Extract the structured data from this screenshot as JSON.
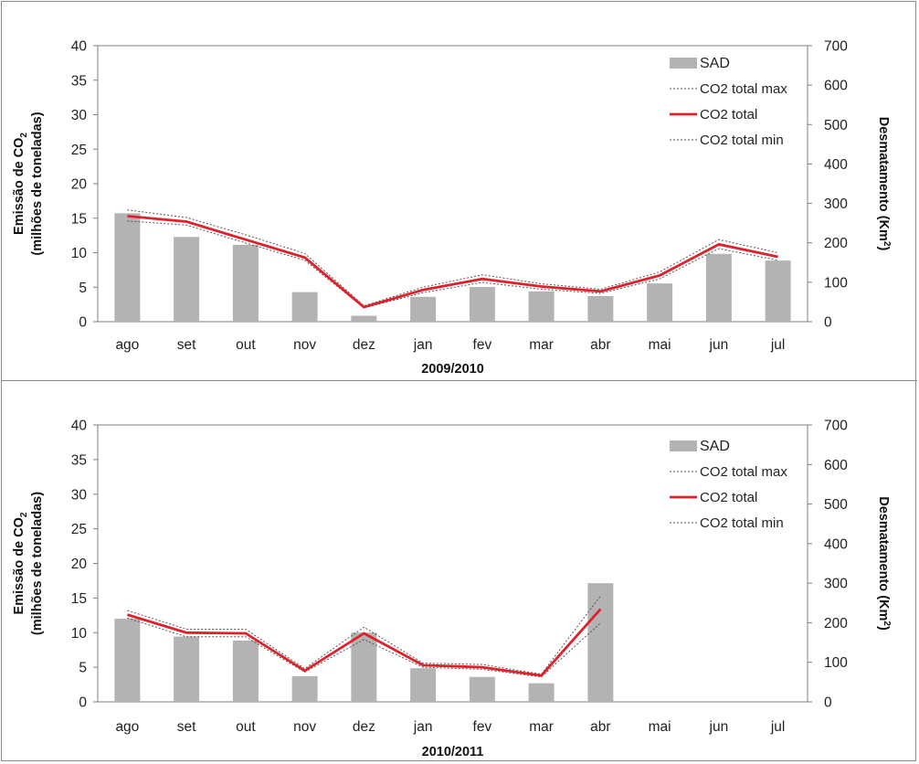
{
  "chart_data": [
    {
      "type": "bar",
      "xlabel": "2009/2010",
      "ylabel_left": [
        "Emissão de CO",
        "2",
        "(milhões de toneladas)"
      ],
      "ylabel_right": [
        "Desmatamento (Km",
        "2",
        ")"
      ],
      "ylim_left": [
        0,
        40
      ],
      "ylim_right": [
        0,
        700
      ],
      "yticks_left": [
        0,
        5,
        10,
        15,
        20,
        25,
        30,
        35,
        40
      ],
      "yticks_right": [
        0,
        100,
        200,
        300,
        400,
        500,
        600,
        700
      ],
      "categories": [
        "ago",
        "set",
        "out",
        "nov",
        "dez",
        "jan",
        "fev",
        "mar",
        "abr",
        "mai",
        "jun",
        "jul"
      ],
      "legend_position": "top-right",
      "series": [
        {
          "name": "SAD",
          "kind": "bar",
          "axis": "right",
          "color": "#b3b3b3",
          "values": [
            275,
            215,
            195,
            75,
            15,
            63,
            88,
            77,
            65,
            97,
            172,
            155
          ]
        },
        {
          "name": "CO2 total max",
          "kind": "line-dotted",
          "axis": "left",
          "color": "#555555",
          "values": [
            16.2,
            15.1,
            12.6,
            9.9,
            2.3,
            5.0,
            6.8,
            5.5,
            4.7,
            7.2,
            11.9,
            10.0
          ]
        },
        {
          "name": "CO2 total",
          "kind": "line",
          "axis": "left",
          "color": "#e0202a",
          "values": [
            15.3,
            14.5,
            11.9,
            9.3,
            2.1,
            4.6,
            6.2,
            5.1,
            4.4,
            6.7,
            11.2,
            9.4
          ]
        },
        {
          "name": "CO2 total min",
          "kind": "line-dotted",
          "axis": "left",
          "color": "#555555",
          "values": [
            14.6,
            14.0,
            11.4,
            8.9,
            2.0,
            4.2,
            5.7,
            4.7,
            4.1,
            6.2,
            10.6,
            8.9
          ]
        }
      ]
    },
    {
      "type": "bar",
      "xlabel": "2010/2011",
      "ylabel_left": [
        "Emissão de CO",
        "2",
        "(milhões de toneladas)"
      ],
      "ylabel_right": [
        "Desmatamento (Km",
        "2",
        ")"
      ],
      "ylim_left": [
        0,
        40
      ],
      "ylim_right": [
        0,
        700
      ],
      "yticks_left": [
        0,
        5,
        10,
        15,
        20,
        25,
        30,
        35,
        40
      ],
      "yticks_right": [
        0,
        100,
        200,
        300,
        400,
        500,
        600,
        700
      ],
      "categories": [
        "ago",
        "set",
        "out",
        "nov",
        "dez",
        "jan",
        "fev",
        "mar",
        "abr",
        "mai",
        "jun",
        "jul"
      ],
      "legend_position": "top-right",
      "series": [
        {
          "name": "SAD",
          "kind": "bar",
          "axis": "right",
          "color": "#b3b3b3",
          "values": [
            210,
            165,
            155,
            65,
            175,
            85,
            63,
            47,
            300,
            null,
            null,
            null
          ]
        },
        {
          "name": "CO2 total max",
          "kind": "line-dotted",
          "axis": "left",
          "color": "#555555",
          "values": [
            13.2,
            10.5,
            10.5,
            4.8,
            10.8,
            5.6,
            5.4,
            4.0,
            15.3,
            null,
            null,
            null
          ]
        },
        {
          "name": "CO2 total",
          "kind": "line",
          "axis": "left",
          "color": "#e0202a",
          "values": [
            12.6,
            10.0,
            9.9,
            4.5,
            9.9,
            5.3,
            5.0,
            3.8,
            13.4,
            null,
            null,
            null
          ]
        },
        {
          "name": "CO2 total min",
          "kind": "line-dotted",
          "axis": "left",
          "color": "#555555",
          "values": [
            12.1,
            9.4,
            9.4,
            4.3,
            9.0,
            5.0,
            4.7,
            3.6,
            11.4,
            null,
            null,
            null
          ]
        }
      ]
    }
  ]
}
